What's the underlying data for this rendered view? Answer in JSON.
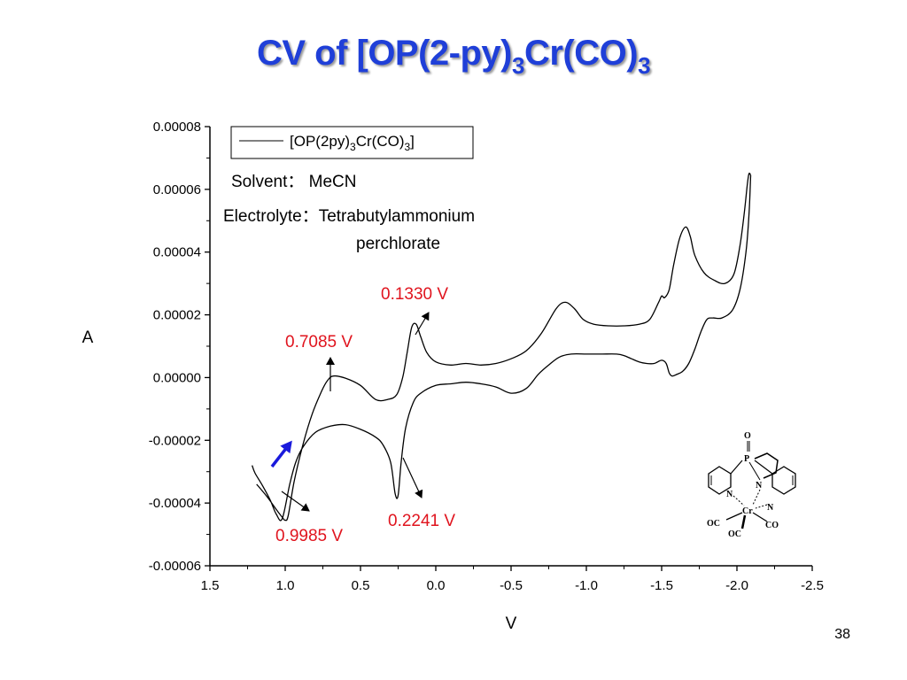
{
  "slide": {
    "title_pre": "CV of [OP(2-py)",
    "title_sub1": "3",
    "title_mid": "Cr(CO)",
    "title_sub2": "3",
    "slide_number": "38",
    "title_color": "#1f3fd8"
  },
  "chart_data": {
    "type": "line",
    "title": "",
    "xlabel": "V",
    "ylabel": "A",
    "xlim": [
      1.5,
      -2.5
    ],
    "ylim": [
      -6e-05,
      8e-05
    ],
    "x_ticks": [
      "1.5",
      "1.0",
      "0.5",
      "0.0",
      "-0.5",
      "-1.0",
      "-1.5",
      "-2.0",
      "-2.5"
    ],
    "x_tick_values": [
      1.5,
      1.0,
      0.5,
      0.0,
      -0.5,
      -1.0,
      -1.5,
      -2.0,
      -2.5
    ],
    "y_ticks": [
      "0.00008",
      "0.00006",
      "0.00004",
      "0.00002",
      "0.00000",
      "-0.00002",
      "-0.00004",
      "-0.00006"
    ],
    "y_tick_values": [
      8e-05,
      6e-05,
      4e-05,
      2e-05,
      0.0,
      -2e-05,
      -4e-05,
      -6e-05
    ],
    "grid": false,
    "legend": {
      "position": "top-left",
      "label_pre": "[OP(2py)",
      "label_sub1": "3",
      "label_mid": "Cr(CO)",
      "label_sub2": "3",
      "label_post": "]"
    },
    "notes": {
      "solvent": "Solvent： MeCN",
      "electrolyte_1": "Electrolyte：Tetrabutylammonium",
      "electrolyte_2": "perchlorate"
    },
    "series": [
      {
        "color": "#000000",
        "x": [
          1.19,
          1.12,
          1.06,
          1.02,
          1.0,
          0.98,
          0.94,
          0.88,
          0.82,
          0.76,
          0.72,
          0.68,
          0.6,
          0.5,
          0.4,
          0.32,
          0.26,
          0.22,
          0.19,
          0.16,
          0.13,
          0.1,
          0.06,
          0.0,
          -0.1,
          -0.2,
          -0.3,
          -0.4,
          -0.5,
          -0.6,
          -0.7,
          -0.8,
          -0.86,
          -0.92,
          -0.98,
          -1.05,
          -1.15,
          -1.25,
          -1.35,
          -1.42,
          -1.48,
          -1.5,
          -1.52,
          -1.55,
          -1.58,
          -1.62,
          -1.66,
          -1.69,
          -1.72,
          -1.78,
          -1.85,
          -1.92,
          -1.98,
          -2.02,
          -2.05,
          -2.07,
          -2.08,
          -2.09,
          -2.09,
          -2.08,
          -2.06,
          -2.02,
          -1.97,
          -1.9,
          -1.84,
          -1.8,
          -1.76,
          -1.72,
          -1.68,
          -1.64,
          -1.6,
          -1.57,
          -1.55,
          -1.53,
          -1.5,
          -1.45,
          -1.4,
          -1.35,
          -1.3,
          -1.25,
          -1.2,
          -1.1,
          -1.0,
          -0.9,
          -0.82,
          -0.75,
          -0.68,
          -0.6,
          -0.5,
          -0.4,
          -0.3,
          -0.2,
          -0.1,
          0.0,
          0.1,
          0.15,
          0.2,
          0.23,
          0.25,
          0.27,
          0.3,
          0.35,
          0.4,
          0.5,
          0.6,
          0.7,
          0.8,
          0.88,
          0.93,
          0.97,
          1.02,
          1.06,
          1.1,
          1.15,
          1.2,
          1.22
        ],
        "y": [
          -3.4e-05,
          -3.8e-05,
          -4.2e-05,
          -4.45e-05,
          -4.55e-05,
          -4.4e-05,
          -3.3e-05,
          -2.1e-05,
          -1.15e-05,
          -4.5e-06,
          -1e-06,
          5e-07,
          -2e-07,
          -2.5e-06,
          -7e-06,
          -7e-06,
          -5.5e-06,
          0.0,
          8e-06,
          1.6e-05,
          1.7e-05,
          1.3e-05,
          8e-06,
          5e-06,
          4e-06,
          4.5e-06,
          4e-06,
          4.5e-06,
          6e-06,
          8.5e-06,
          1.4e-05,
          2.2e-05,
          2.4e-05,
          2.2e-05,
          1.85e-05,
          1.7e-05,
          1.65e-05,
          1.65e-05,
          1.7e-05,
          1.85e-05,
          2.4e-05,
          2.6e-05,
          2.55e-05,
          2.8e-05,
          3.6e-05,
          4.45e-05,
          4.8e-05,
          4.5e-05,
          3.9e-05,
          3.35e-05,
          3.1e-05,
          3e-05,
          3.3e-05,
          4.2e-05,
          5.3e-05,
          6.2e-05,
          6.5e-05,
          6.45e-05,
          6.3e-05,
          5.2e-05,
          4e-05,
          2.8e-05,
          2.15e-05,
          1.9e-05,
          1.9e-05,
          1.85e-05,
          1.45e-05,
          9e-06,
          4.5e-06,
          2e-06,
          1e-06,
          5e-07,
          1.5e-06,
          4.5e-06,
          5.5e-06,
          4.5e-06,
          4.5e-06,
          5e-06,
          6e-06,
          7e-06,
          7.5e-06,
          7.5e-06,
          7.5e-06,
          7.5e-06,
          6.5e-06,
          4e-06,
          1e-06,
          -3.5e-06,
          -5e-06,
          -3e-06,
          -2e-06,
          -1.5e-06,
          -2e-06,
          -2.5e-06,
          -5e-06,
          -8e-06,
          -1.6e-05,
          -2.7e-05,
          -3.75e-05,
          -3.7e-05,
          -2.7e-05,
          -2.15e-05,
          -1.9e-05,
          -1.65e-05,
          -1.5e-05,
          -1.55e-05,
          -1.75e-05,
          -2.2e-05,
          -2.7e-05,
          -3.4e-05,
          -4.5e-05,
          -4.35e-05,
          -3.9e-05,
          -3.45e-05,
          -3.05e-05,
          -2.8e-05
        ]
      }
    ],
    "annotations": [
      {
        "text": "0.1330 V",
        "x": 0.133,
        "y": 1.7e-05,
        "color": "#e0141e"
      },
      {
        "text": "0.7085 V",
        "x": 0.7085,
        "y": 5e-07,
        "color": "#e0141e"
      },
      {
        "text": "0.2241 V",
        "x": 0.2241,
        "y": -3.75e-05,
        "color": "#e0141e"
      },
      {
        "text": "0.9985 V",
        "x": 0.9985,
        "y": -4.55e-05,
        "color": "#e0141e"
      }
    ],
    "scan_direction_color": "#1a1adc"
  },
  "structure": {
    "atoms": [
      "O",
      "P",
      "N",
      "N",
      "N",
      "Cr",
      "OC",
      "OC",
      "CO"
    ]
  }
}
